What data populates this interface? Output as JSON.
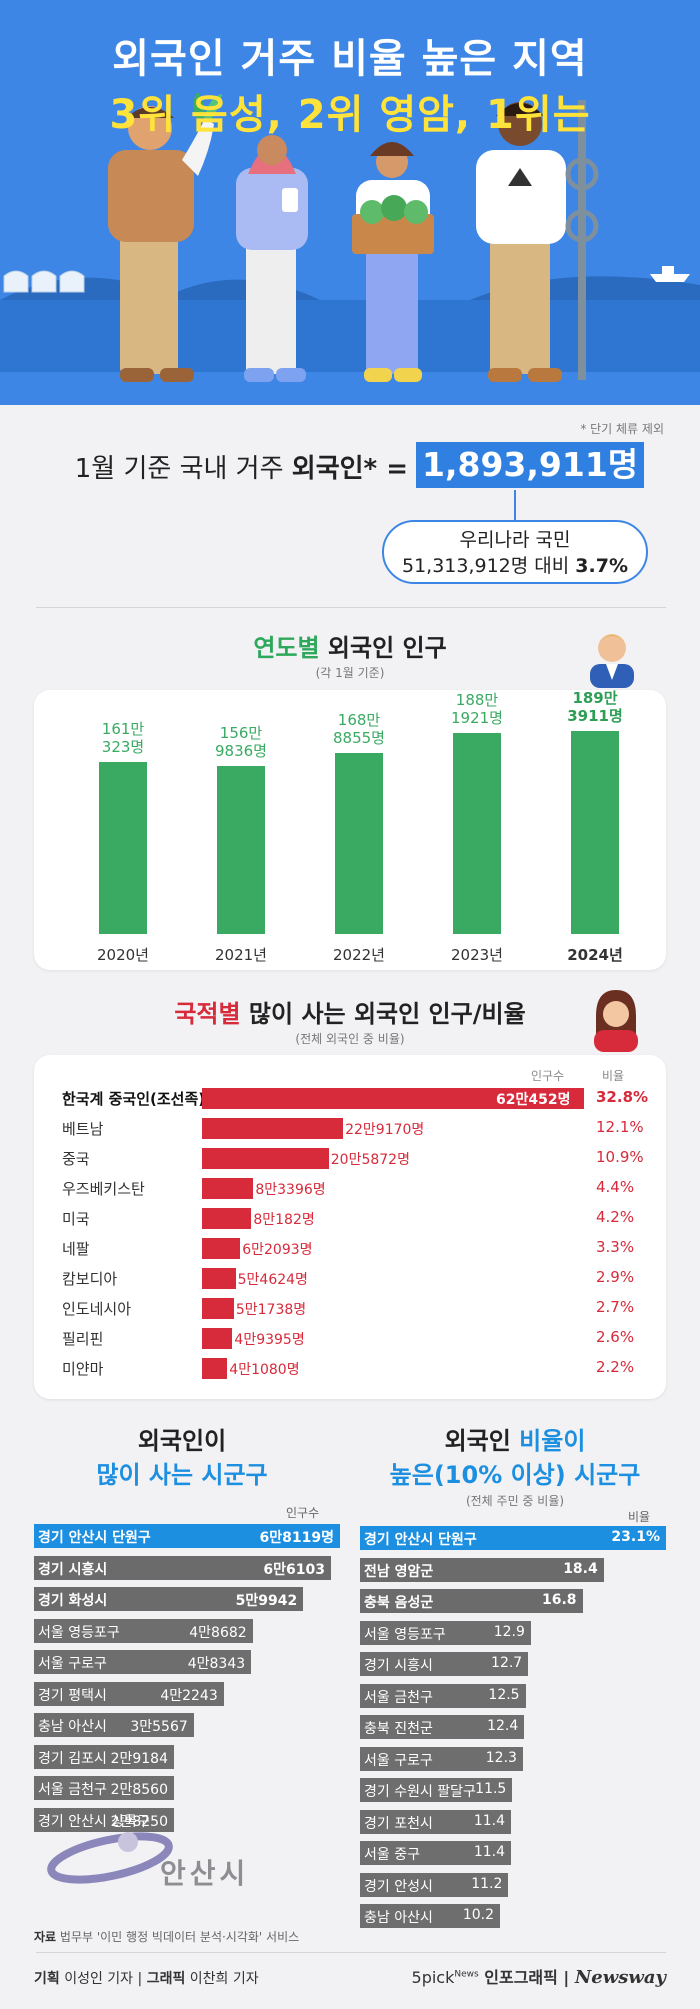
{
  "hero": {
    "title_line1": "외국인 거주 비율 높은 지역",
    "title_line2": "3위 음성, 2위 영암, 1위는"
  },
  "summary": {
    "note": "* 단기 체류 제외",
    "label_prefix": "1월 기준 국내 거주 ",
    "label_bold": "외국인* =",
    "total": "1,893,911명",
    "share_line1": "우리나라 국민",
    "share_line2_prefix": "51,313,912명 대비 ",
    "share_pct": "3.7%"
  },
  "yearly": {
    "title_accent": "연도별",
    "title_rest": " 외국인 인구",
    "subtitle": "(각 1월 기준)"
  },
  "nationality": {
    "title_accent": "국적별",
    "title_rest": " 많이 사는 외국인 인구/비율",
    "subtitle": "(전체 외국인 중 비율)",
    "col_count": "인구수",
    "col_pct": "비율"
  },
  "left_list": {
    "title_line1": "외국인이",
    "title_line2": "많이 사는 시군구",
    "col": "인구수",
    "rows": [
      {
        "name": "경기 안산시 단원구",
        "value": "6만8119명",
        "n": 68119
      },
      {
        "name": "경기 시흥시",
        "value": "6만6103",
        "n": 66103
      },
      {
        "name": "경기 화성시",
        "value": "5만9942",
        "n": 59942
      },
      {
        "name": "서울 영등포구",
        "value": "4만8682",
        "n": 48682
      },
      {
        "name": "서울 구로구",
        "value": "4만8343",
        "n": 48343
      },
      {
        "name": "경기 평택시",
        "value": "4만2243",
        "n": 42243
      },
      {
        "name": "충남 아산시",
        "value": "3만5567",
        "n": 35567
      },
      {
        "name": "경기 김포시",
        "value": "2만9184",
        "n": 29184
      },
      {
        "name": "서울 금천구",
        "value": "2만8560",
        "n": 28560
      },
      {
        "name": "경기 안산시 상록구",
        "value": "2만8250",
        "n": 28250
      }
    ]
  },
  "right_list": {
    "title_line1_a": "외국인 ",
    "title_line1_b": "비율이",
    "title_line2": "높은(10% 이상) 시군구",
    "subtitle": "(전체 주민 중 비율)",
    "col": "비율",
    "rows": [
      {
        "name": "경기 안산시 단원구",
        "value": "23.1%",
        "n": 23.1
      },
      {
        "name": "전남 영암군",
        "value": "18.4",
        "n": 18.4
      },
      {
        "name": "충북 음성군",
        "value": "16.8",
        "n": 16.8
      },
      {
        "name": "서울 영등포구",
        "value": "12.9",
        "n": 12.9
      },
      {
        "name": "경기 시흥시",
        "value": "12.7",
        "n": 12.7
      },
      {
        "name": "서울 금천구",
        "value": "12.5",
        "n": 12.5
      },
      {
        "name": "충북 진천군",
        "value": "12.4",
        "n": 12.4
      },
      {
        "name": "서울 구로구",
        "value": "12.3",
        "n": 12.3
      },
      {
        "name": "경기 수원시 팔달구",
        "value": "11.5",
        "n": 11.5
      },
      {
        "name": "경기 포천시",
        "value": "11.4",
        "n": 11.4
      },
      {
        "name": "서울 중구",
        "value": "11.4",
        "n": 11.4
      },
      {
        "name": "경기 안성시",
        "value": "11.2",
        "n": 11.2
      },
      {
        "name": "충남 아산시",
        "value": "10.2",
        "n": 10.2
      }
    ]
  },
  "watermark": "안산시",
  "footer": {
    "source_label": "자료",
    "source_text": " 법무부 '이민 행정 빅데이터 분석·시각화' 서비스",
    "credit_plan_label": "기획",
    "credit_plan": " 이성인 기자 | ",
    "credit_graphic_label": "그래픽",
    "credit_graphic": " 이찬희 기자",
    "brand_5pick": "5pick",
    "brand_news": "News",
    "brand_infographic": " 인포그래픽 | ",
    "brand_newsway": "Newsway"
  },
  "colors": {
    "hero_bg": "#3d86e6",
    "accent_yellow": "#ffe23a",
    "green": "#3aaa63",
    "red": "#d72a3a",
    "blue": "#1d8fe0",
    "gray_bar": "#6b6b6b"
  },
  "chart_data": [
    {
      "type": "bar",
      "title": "연도별 외국인 인구",
      "subtitle": "(각 1월 기준)",
      "categories": [
        "2020년",
        "2021년",
        "2022년",
        "2023년",
        "2024년"
      ],
      "values": [
        1610323,
        1569836,
        1688855,
        1881921,
        1893911
      ],
      "labels_line1": [
        "161만",
        "156만",
        "168만",
        "188만",
        "189만"
      ],
      "labels_line2": [
        "323명",
        "9836명",
        "8855명",
        "1921명",
        "3911명"
      ],
      "ylim": [
        0,
        2000000
      ]
    },
    {
      "type": "bar",
      "orientation": "horizontal",
      "title": "국적별 많이 사는 외국인 인구/비율",
      "subtitle": "(전체 외국인 중 비율)",
      "categories": [
        "한국계 중국인(조선족)",
        "베트남",
        "중국",
        "우즈베키스탄",
        "미국",
        "네팔",
        "캄보디아",
        "인도네시아",
        "필리핀",
        "미얀마"
      ],
      "values": [
        620452,
        229170,
        205872,
        83396,
        80182,
        62093,
        54624,
        51738,
        49395,
        41080
      ],
      "value_labels": [
        "62만452명",
        "22만9170명",
        "20만5872명",
        "8만3396명",
        "8만182명",
        "6만2093명",
        "5만4624명",
        "5만1738명",
        "4만9395명",
        "4만1080명"
      ],
      "percent_labels": [
        "32.8%",
        "12.1%",
        "10.9%",
        "4.4%",
        "4.2%",
        "3.3%",
        "2.9%",
        "2.7%",
        "2.6%",
        "2.2%"
      ]
    }
  ]
}
